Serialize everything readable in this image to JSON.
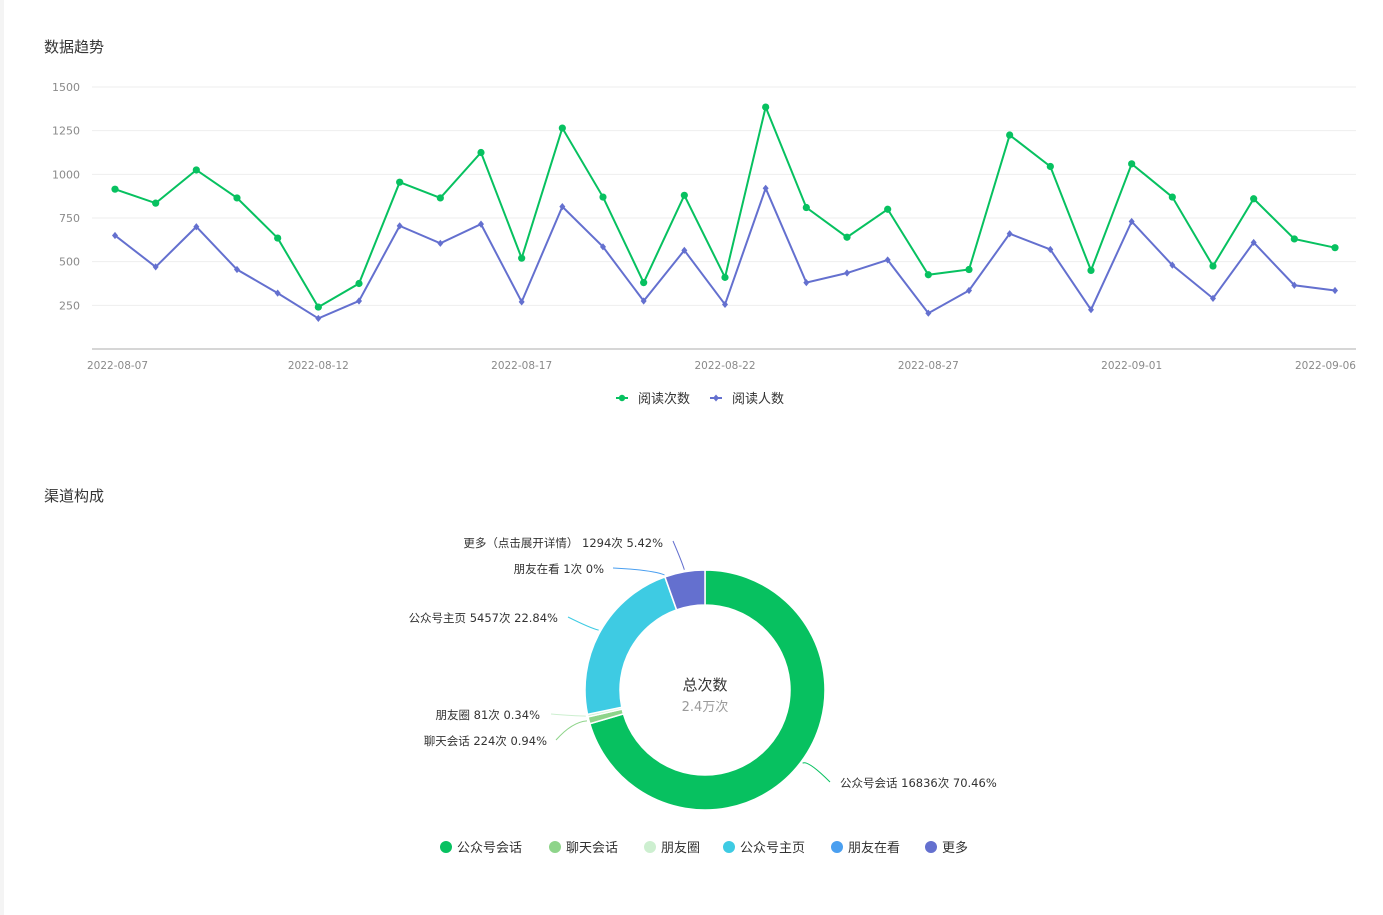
{
  "trend": {
    "title": "数据趋势",
    "chart_data": {
      "type": "line",
      "x": [
        "2022-08-07",
        "2022-08-08",
        "2022-08-09",
        "2022-08-10",
        "2022-08-11",
        "2022-08-12",
        "2022-08-13",
        "2022-08-14",
        "2022-08-15",
        "2022-08-16",
        "2022-08-17",
        "2022-08-18",
        "2022-08-19",
        "2022-08-20",
        "2022-08-21",
        "2022-08-22",
        "2022-08-23",
        "2022-08-24",
        "2022-08-25",
        "2022-08-26",
        "2022-08-27",
        "2022-08-28",
        "2022-08-29",
        "2022-08-30",
        "2022-08-31",
        "2022-09-01",
        "2022-09-02",
        "2022-09-03",
        "2022-09-04",
        "2022-09-05",
        "2022-09-06"
      ],
      "x_tick_labels": [
        "2022-08-07",
        "2022-08-12",
        "2022-08-17",
        "2022-08-22",
        "2022-08-27",
        "2022-09-01",
        "2022-09-06"
      ],
      "y_ticks": [
        250,
        500,
        750,
        1000,
        1250,
        1500
      ],
      "ylim": [
        0,
        1500
      ],
      "grid": true,
      "legend_position": "bottom-center",
      "series": [
        {
          "name": "阅读次数",
          "color": "#07c160",
          "marker": "circle",
          "values": [
            915,
            835,
            1025,
            865,
            635,
            240,
            375,
            955,
            865,
            1125,
            520,
            1265,
            870,
            380,
            880,
            410,
            1385,
            810,
            640,
            800,
            425,
            455,
            1225,
            1045,
            450,
            1060,
            870,
            475,
            860,
            630,
            580
          ]
        },
        {
          "name": "阅读人数",
          "color": "#6470cf",
          "marker": "diamond",
          "values": [
            650,
            470,
            700,
            455,
            320,
            175,
            275,
            705,
            605,
            715,
            270,
            815,
            585,
            275,
            565,
            255,
            920,
            380,
            435,
            510,
            205,
            335,
            660,
            570,
            225,
            730,
            480,
            290,
            610,
            365,
            335
          ]
        }
      ]
    }
  },
  "channel": {
    "title": "渠道构成",
    "chart_data": {
      "type": "pie",
      "donut": true,
      "center_title": "总次数",
      "center_value": "2.4万次",
      "slices": [
        {
          "name": "公众号会话",
          "count": 16836,
          "percent": 70.46,
          "label": "公众号会话 16836次 70.46%",
          "color": "#07c160"
        },
        {
          "name": "聊天会话",
          "count": 224,
          "percent": 0.94,
          "label": "聊天会话 224次 0.94%",
          "color": "#8ed48a"
        },
        {
          "name": "朋友圈",
          "count": 81,
          "percent": 0.34,
          "label": "朋友圈 81次 0.34%",
          "color": "#cdefd0"
        },
        {
          "name": "公众号主页",
          "count": 5457,
          "percent": 22.84,
          "label": "公众号主页 5457次 22.84%",
          "color": "#3ecbe3"
        },
        {
          "name": "朋友在看",
          "count": 1,
          "percent": 0,
          "label": "朋友在看 1次 0%",
          "color": "#4a9ff0"
        },
        {
          "name": "更多",
          "count": 1294,
          "percent": 5.42,
          "label": "更多（点击展开详情） 1294次 5.42%",
          "color": "#6470cf"
        }
      ],
      "legend_position": "bottom-center"
    }
  }
}
